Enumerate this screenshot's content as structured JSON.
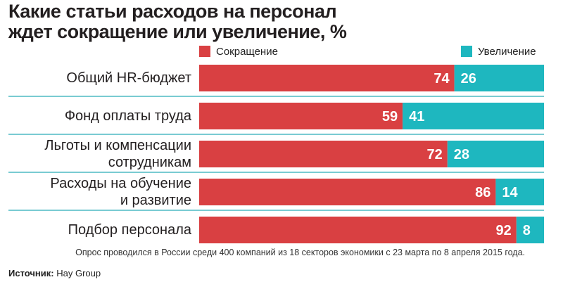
{
  "title_lines": [
    "Какие статьи расходов на персонал",
    "ждет сокращение или увеличение, %"
  ],
  "legend": {
    "decrease": "Сокращение",
    "increase": "Увеличение"
  },
  "colors": {
    "decrease": "#d94042",
    "increase": "#1eb7bf",
    "divider": "#4dbac3"
  },
  "footnote": "Опрос проводился в России среди 400 компаний из 18 секторов экономики с 23 марта по 8 апреля 2015 года.",
  "source": {
    "label": "Источник:",
    "value": "Hay Group"
  },
  "chart_data": {
    "type": "bar",
    "orientation": "horizontal-stacked-100",
    "title": "Какие статьи расходов на персонал ждет сокращение или увеличение, %",
    "categories": [
      "Общий HR-бюджет",
      "Фонд оплаты труда",
      "Льготы и компенсации сотрудникам",
      "Расходы на обучение и развитие",
      "Подбор персонала"
    ],
    "category_lines": [
      [
        "Общий HR-бюджет"
      ],
      [
        "Фонд оплаты труда"
      ],
      [
        "Льготы и компенсации",
        "сотрудникам"
      ],
      [
        "Расходы на обучение",
        "и развитие"
      ],
      [
        "Подбор персонала"
      ]
    ],
    "series": [
      {
        "name": "Сокращение",
        "values": [
          74,
          59,
          72,
          86,
          92
        ]
      },
      {
        "name": "Увеличение",
        "values": [
          26,
          41,
          28,
          14,
          8
        ]
      }
    ],
    "xlim": [
      0,
      100
    ],
    "legend_position": "top",
    "grid": false
  }
}
